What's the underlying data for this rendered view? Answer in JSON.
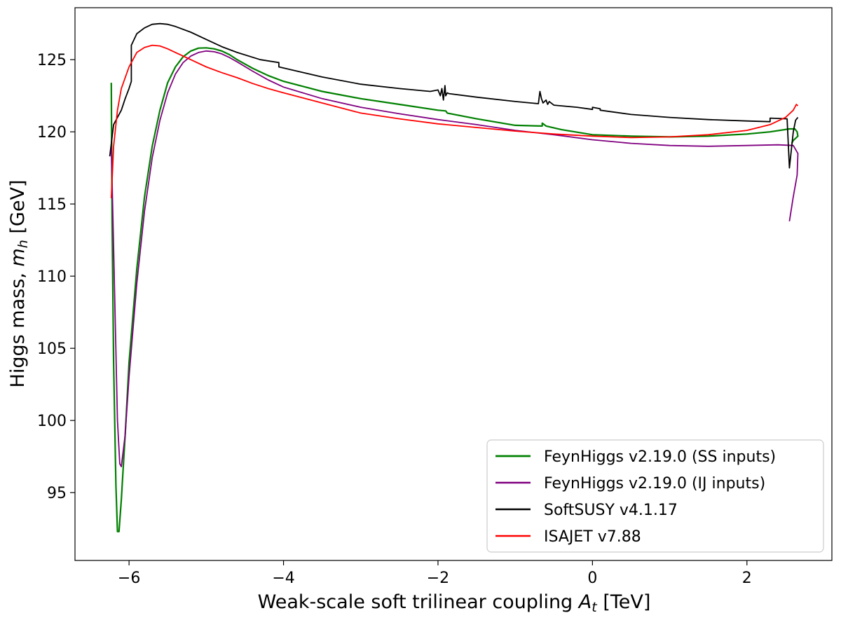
{
  "chart_data": {
    "type": "line",
    "title": "",
    "xlabel": "Weak-scale soft trilinear coupling",
    "xlabel_symbol": "A",
    "xlabel_sub": "t",
    "xlabel_unit": "[TeV]",
    "ylabel": "Higgs mass,",
    "ylabel_symbol": "m",
    "ylabel_sub": "h",
    "ylabel_unit": "[GeV]",
    "xlim": [
      -6.7,
      3.1
    ],
    "ylim": [
      90.3,
      128.6
    ],
    "xticks": [
      -6,
      -4,
      -2,
      0,
      2
    ],
    "xtick_labels": [
      "−6",
      "−4",
      "−2",
      "0",
      "2"
    ],
    "yticks": [
      95,
      100,
      105,
      110,
      115,
      120,
      125
    ],
    "ytick_labels": [
      "95",
      "100",
      "105",
      "110",
      "115",
      "120",
      "125"
    ],
    "legend_position": "lower-right",
    "series": [
      {
        "name": "FeynHiggs v2.19.0 (SS inputs)",
        "color": "#008000",
        "width": 2.2,
        "x": [
          -6.23,
          -6.22,
          -6.2,
          -6.17,
          -6.15,
          -6.13,
          -6.1,
          -6.05,
          -6.0,
          -5.9,
          -5.8,
          -5.7,
          -5.6,
          -5.5,
          -5.4,
          -5.3,
          -5.2,
          -5.1,
          -5.0,
          -4.9,
          -4.8,
          -4.7,
          -4.6,
          -4.4,
          -4.2,
          -4.0,
          -3.5,
          -3.0,
          -2.5,
          -2.0,
          -1.9,
          -1.88,
          -1.5,
          -1.0,
          -0.65,
          -0.65,
          -0.6,
          -0.4,
          0.0,
          0.5,
          1.0,
          1.5,
          2.0,
          2.3,
          2.55,
          2.62,
          2.65,
          2.66,
          2.6,
          2.58
        ],
        "y": [
          123.4,
          114.0,
          104.0,
          95.5,
          92.3,
          92.3,
          94.5,
          99.0,
          104.0,
          110.5,
          115.5,
          119.0,
          121.5,
          123.4,
          124.5,
          125.2,
          125.6,
          125.8,
          125.82,
          125.75,
          125.6,
          125.35,
          125.0,
          124.4,
          123.9,
          123.5,
          122.8,
          122.3,
          121.9,
          121.5,
          121.45,
          121.3,
          120.9,
          120.45,
          120.4,
          120.6,
          120.4,
          120.15,
          119.8,
          119.7,
          119.65,
          119.7,
          119.85,
          120.0,
          120.2,
          120.2,
          120.0,
          119.7,
          119.4,
          119.2
        ]
      },
      {
        "name": "FeynHiggs v2.19.0 (IJ inputs)",
        "color": "#800080",
        "width": 1.8,
        "x": [
          -6.23,
          -6.2,
          -6.15,
          -6.12,
          -6.1,
          -6.05,
          -6.0,
          -5.9,
          -5.8,
          -5.7,
          -5.6,
          -5.5,
          -5.4,
          -5.3,
          -5.2,
          -5.1,
          -5.0,
          -4.9,
          -4.8,
          -4.7,
          -4.6,
          -4.4,
          -4.2,
          -4.0,
          -3.5,
          -3.0,
          -2.5,
          -2.0,
          -1.5,
          -1.0,
          -0.5,
          0.0,
          0.5,
          1.0,
          1.5,
          2.0,
          2.4,
          2.6,
          2.66,
          2.65,
          2.6,
          2.55
        ],
        "y": [
          119.0,
          112.0,
          100.0,
          97.0,
          96.8,
          99.0,
          103.0,
          109.5,
          114.5,
          118.2,
          120.8,
          122.7,
          124.0,
          124.8,
          125.25,
          125.5,
          125.6,
          125.55,
          125.4,
          125.15,
          124.85,
          124.2,
          123.6,
          123.1,
          122.3,
          121.7,
          121.25,
          120.85,
          120.5,
          120.1,
          119.8,
          119.45,
          119.2,
          119.05,
          119.0,
          119.05,
          119.1,
          119.05,
          118.5,
          117.0,
          115.5,
          113.8
        ]
      },
      {
        "name": "SoftSUSY v4.1.17",
        "color": "#000000",
        "width": 1.8,
        "x": [
          -6.25,
          -6.2,
          -6.15,
          -6.1,
          -6.05,
          -6.0,
          -5.97,
          -5.97,
          -5.9,
          -5.8,
          -5.7,
          -5.6,
          -5.5,
          -5.4,
          -5.2,
          -5.0,
          -4.8,
          -4.6,
          -4.3,
          -4.06,
          -4.06,
          -3.5,
          -3.0,
          -2.5,
          -2.1,
          -2.0,
          -1.97,
          -1.95,
          -1.93,
          -1.91,
          -1.9,
          -1.88,
          -1.86,
          -1.5,
          -1.0,
          -0.7,
          -0.68,
          -0.66,
          -0.64,
          -0.6,
          -0.58,
          -0.56,
          -0.5,
          -0.2,
          0.0,
          0.0,
          0.1,
          0.1,
          0.5,
          1.0,
          1.5,
          2.0,
          2.3,
          2.3,
          2.52,
          2.55,
          2.58,
          2.6,
          2.63,
          2.66
        ],
        "y": [
          118.3,
          120.5,
          121.0,
          121.5,
          122.3,
          123.0,
          123.5,
          126.0,
          126.8,
          127.2,
          127.45,
          127.5,
          127.45,
          127.3,
          126.9,
          126.4,
          125.9,
          125.5,
          125.0,
          124.8,
          124.5,
          123.8,
          123.3,
          123.0,
          122.8,
          122.9,
          122.5,
          123.0,
          122.2,
          123.2,
          122.5,
          122.7,
          122.65,
          122.4,
          122.1,
          121.95,
          122.8,
          122.3,
          122.0,
          122.2,
          121.9,
          122.1,
          121.85,
          121.7,
          121.55,
          121.7,
          121.6,
          121.5,
          121.2,
          121.0,
          120.85,
          120.75,
          120.7,
          120.95,
          120.9,
          117.5,
          119.0,
          120.0,
          120.8,
          121.0
        ]
      },
      {
        "name": "ISAJET v7.88",
        "color": "#ff0000",
        "width": 1.8,
        "x": [
          -6.23,
          -6.2,
          -6.15,
          -6.1,
          -6.0,
          -5.9,
          -5.8,
          -5.7,
          -5.6,
          -5.5,
          -5.4,
          -5.2,
          -5.0,
          -4.8,
          -4.6,
          -4.4,
          -4.2,
          -4.0,
          -3.5,
          -3.0,
          -2.5,
          -2.0,
          -1.5,
          -1.0,
          -0.5,
          0.0,
          0.5,
          1.0,
          1.5,
          2.0,
          2.3,
          2.5,
          2.6,
          2.64,
          2.66
        ],
        "y": [
          115.4,
          119.0,
          121.5,
          123.0,
          124.5,
          125.5,
          125.85,
          126.0,
          125.95,
          125.75,
          125.5,
          125.0,
          124.5,
          124.1,
          123.75,
          123.35,
          123.0,
          122.7,
          122.0,
          121.3,
          120.9,
          120.55,
          120.3,
          120.05,
          119.85,
          119.7,
          119.6,
          119.65,
          119.8,
          120.1,
          120.5,
          121.0,
          121.5,
          121.9,
          121.8
        ]
      }
    ]
  }
}
